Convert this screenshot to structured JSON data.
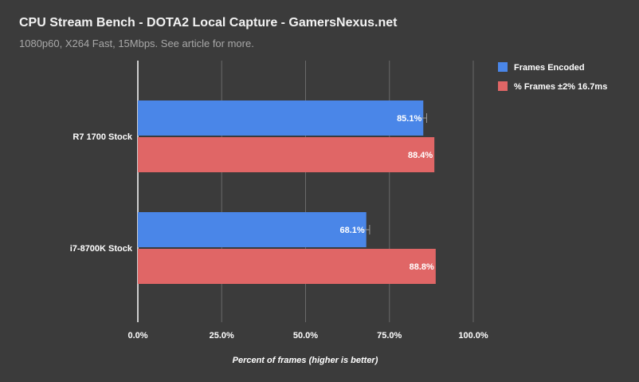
{
  "chart_data": {
    "type": "bar",
    "orientation": "horizontal",
    "title": "CPU Stream Bench - DOTA2 Local Capture - GamersNexus.net",
    "subtitle": "1080p60, X264 Fast, 15Mbps. See article for more.",
    "xlabel": "Percent of frames (higher is better)",
    "ylabel": "",
    "xlim": [
      0,
      100
    ],
    "ticks": [
      0,
      25,
      50,
      75,
      100
    ],
    "tick_labels": [
      "0.0%",
      "25.0%",
      "50.0%",
      "75.0%",
      "100.0%"
    ],
    "categories": [
      "R7 1700 Stock",
      "i7-8700K Stock"
    ],
    "series": [
      {
        "name": "Frames Encoded",
        "color": "#4a86e8",
        "values": [
          85.1,
          68.1
        ],
        "labels": [
          "85.1%",
          "68.1%"
        ],
        "error": [
          1.0,
          1.0
        ]
      },
      {
        "name": "% Frames ±2% 16.7ms",
        "color": "#e06666",
        "values": [
          88.4,
          88.8
        ],
        "labels": [
          "88.4%",
          "88.8%"
        ]
      }
    ],
    "grid": true,
    "legend_position": "right"
  }
}
